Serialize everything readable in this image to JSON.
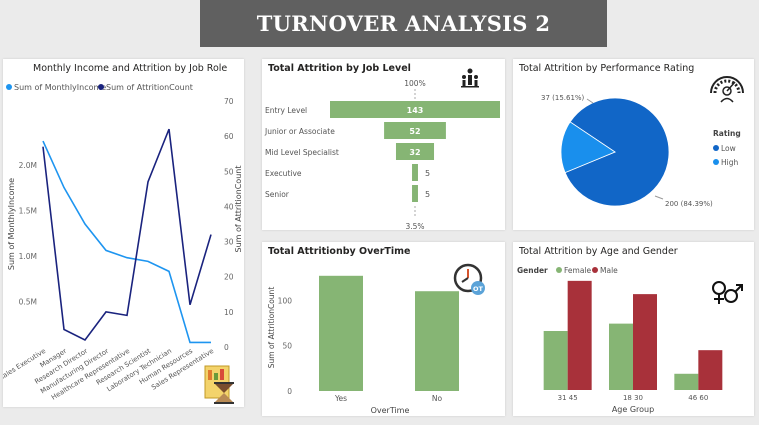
{
  "page_title": "TURNOVER ANALYSIS 2",
  "cards": {
    "income_by_role": {
      "title": "Monthly Income and Attrition by Job Role",
      "legend": [
        "Sum of MonthlyIncome",
        "Sum of AttritionCount"
      ],
      "ylabel_left": "Sum of MonthlyIncome",
      "ylabel_right": "Sum of AttritionCount"
    },
    "job_level": {
      "title": "Total Attrition by Job Level",
      "top_percent": "100%",
      "bottom_percent": "3.5%"
    },
    "performance": {
      "title": "Total Attrition by Performance Rating",
      "legend_title": "Rating"
    },
    "overtime": {
      "title": "Total Attritionby OverTime",
      "xlabel": "OverTime",
      "ylabel": "Sum of AttritionCount"
    },
    "age_gender": {
      "title": "Total Attrition by Age and Gender",
      "legend_title": "Gender",
      "xlabel": "Age Group"
    }
  },
  "colors": {
    "income_line": "#1e95f0",
    "attrition_line": "#1a237e",
    "green": "#86b574",
    "red": "#a8313a",
    "pie_low": "#1166c7",
    "pie_high": "#198fed"
  },
  "icons": {
    "income_by_role": "report-hourglass-icon",
    "job_level": "org-hierarchy-icon",
    "performance": "performance-gauge-icon",
    "overtime": "overtime-clock-icon",
    "age_gender": "gender-symbols-icon"
  },
  "chart_data": [
    {
      "id": "income_by_role",
      "type": "line",
      "title": "Monthly Income and Attrition by Job Role",
      "categories": [
        "Sales Executive",
        "Manager",
        "Research Director",
        "Manufacturing Director",
        "Healthcare Representative",
        "Research Scientist",
        "Laboratory Technician",
        "Human Resources",
        "Sales Representative"
      ],
      "series": [
        {
          "name": "Sum of MonthlyIncome",
          "axis": "left",
          "values": [
            2260000,
            1750000,
            1350000,
            1060000,
            980000,
            940000,
            830000,
            50000,
            50000
          ]
        },
        {
          "name": "Sum of AttritionCount",
          "axis": "right",
          "values": [
            57,
            5,
            2,
            10,
            9,
            47,
            62,
            12,
            32
          ]
        }
      ],
      "ylabel": "Sum of MonthlyIncome",
      "y2label": "Sum of AttritionCount",
      "yticks": [
        "0.5M",
        "1.0M",
        "1.5M",
        "2.0M"
      ],
      "y2ticks": [
        "0",
        "10",
        "20",
        "30",
        "40",
        "50",
        "60",
        "70"
      ],
      "ylim": [
        0,
        2700000
      ],
      "y2lim": [
        0,
        70
      ],
      "legend_position": "top-left"
    },
    {
      "id": "job_level",
      "type": "bar",
      "subtype": "funnel",
      "title": "Total Attrition by Job Level",
      "categories": [
        "Entry Level",
        "Junior or Associate",
        "Mid Level Specialist",
        "Executive",
        "Senior"
      ],
      "values": [
        143,
        52,
        32,
        5,
        5
      ],
      "data_labels": [
        "143",
        "52",
        "32",
        "5",
        "5"
      ]
    },
    {
      "id": "performance",
      "type": "pie",
      "title": "Total Attrition by Performance Rating",
      "categories": [
        "Low",
        "High"
      ],
      "values": [
        200,
        37
      ],
      "data_labels": [
        "200 (84.39%)",
        "37 (15.61%)"
      ],
      "legend_title": "Rating",
      "legend_position": "right"
    },
    {
      "id": "overtime",
      "type": "bar",
      "title": "Total Attritionby OverTime",
      "categories": [
        "Yes",
        "No"
      ],
      "values": [
        127,
        110
      ],
      "xlabel": "OverTime",
      "ylabel": "Sum of AttritionCount",
      "yticks": [
        "0",
        "50",
        "100"
      ],
      "ylim": [
        0,
        140
      ]
    },
    {
      "id": "age_gender",
      "type": "bar",
      "title": "Total Attrition by Age and Gender",
      "categories": [
        "31 45",
        "18 30",
        "46 60"
      ],
      "series": [
        {
          "name": "Female",
          "values": [
            40,
            45,
            11
          ]
        },
        {
          "name": "Male",
          "values": [
            74,
            65,
            27
          ]
        }
      ],
      "xlabel": "Age Group",
      "legend_title": "Gender",
      "legend_position": "top-left",
      "ylim": [
        0,
        80
      ]
    }
  ]
}
